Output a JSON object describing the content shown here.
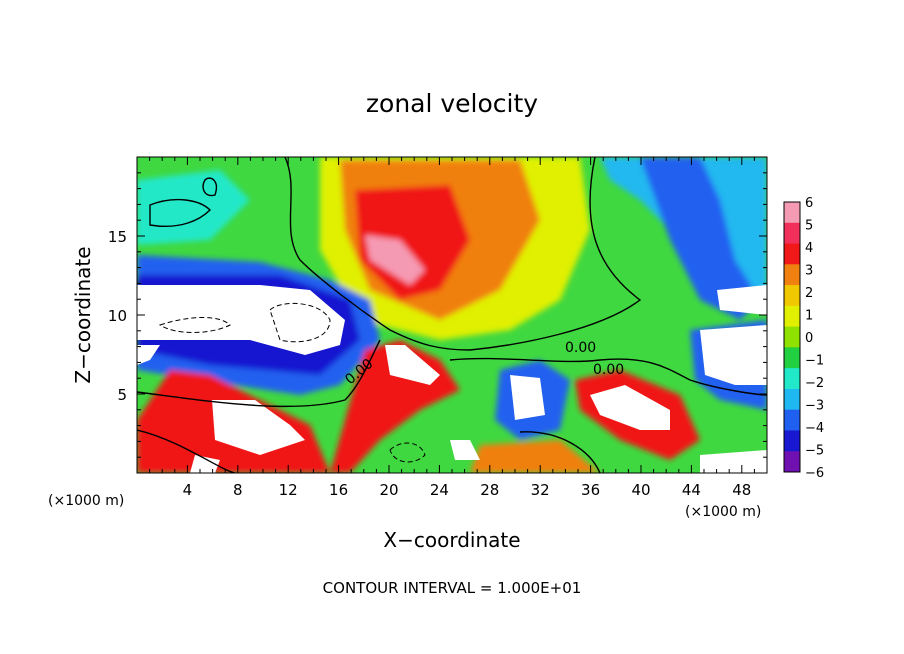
{
  "chart_data": {
    "type": "heatmap",
    "title": "zonal velocity",
    "xlabel": "X−coordinate",
    "ylabel": "Z−coordinate",
    "x_unit_left": "(×1000 m)",
    "x_unit_right": "(×1000 m)",
    "xlim": [
      0,
      50
    ],
    "ylim": [
      0,
      20
    ],
    "xticks": [
      4,
      8,
      12,
      16,
      20,
      24,
      28,
      32,
      36,
      40,
      44,
      48
    ],
    "yticks": [
      5,
      10,
      15
    ],
    "colorbar": {
      "ticks": [
        "6",
        "5",
        "4",
        "3",
        "2",
        "1",
        "0",
        "−1",
        "−2",
        "−3",
        "−4",
        "−5",
        "−6"
      ],
      "colors": [
        "#f59ab3",
        "#f0305a",
        "#f01818",
        "#f08010",
        "#f0c800",
        "#e0f000",
        "#90e000",
        "#20d040",
        "#20e8c8",
        "#20b8f0",
        "#2060f0",
        "#1818d0",
        "#7010b0"
      ]
    },
    "contour_labels": [
      "0.00",
      "0.00",
      "0.00"
    ],
    "footer": "CONTOUR INTERVAL = 1.000E+01"
  }
}
